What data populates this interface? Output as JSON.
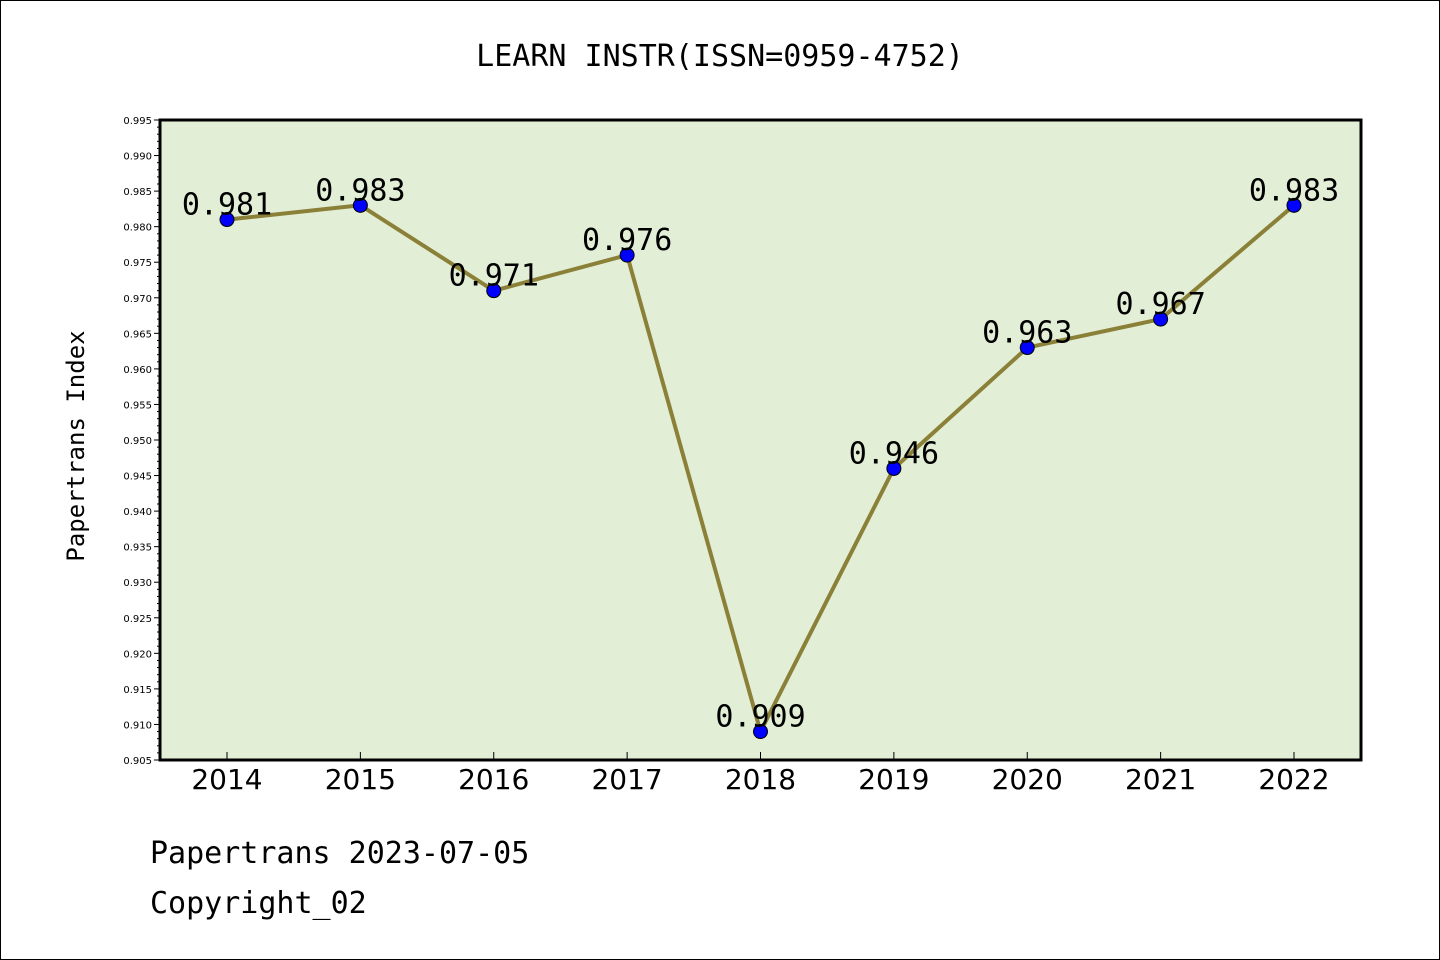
{
  "footer": {
    "line1": "Papertrans 2023-07-05",
    "line2": "Copyright_02"
  },
  "colors": {
    "plot_background": "#e2efd6",
    "line": "#8b8038",
    "marker": "#0000ff"
  },
  "chart_data": {
    "type": "line",
    "title": "LEARN INSTR(ISSN=0959-4752)",
    "xlabel": "",
    "ylabel": "Papertrans Index",
    "categories": [
      "2014",
      "2015",
      "2016",
      "2017",
      "2018",
      "2019",
      "2020",
      "2021",
      "2022"
    ],
    "series": [
      {
        "values": [
          0.981,
          0.983,
          0.971,
          0.976,
          0.909,
          0.946,
          0.963,
          0.967,
          0.983
        ],
        "labels": [
          "0.981",
          "0.983",
          "0.971",
          "0.976",
          "0.909",
          "0.946",
          "0.963",
          "0.967",
          "0.983"
        ]
      }
    ],
    "ylim": [
      0.905,
      0.995
    ],
    "yticks": [
      "0.905",
      "0.910",
      "0.915",
      "0.920",
      "0.925",
      "0.930",
      "0.935",
      "0.940",
      "0.945",
      "0.950",
      "0.955",
      "0.960",
      "0.965",
      "0.970",
      "0.975",
      "0.980",
      "0.985",
      "0.990",
      "0.995"
    ],
    "grid": false,
    "legend": "none"
  }
}
